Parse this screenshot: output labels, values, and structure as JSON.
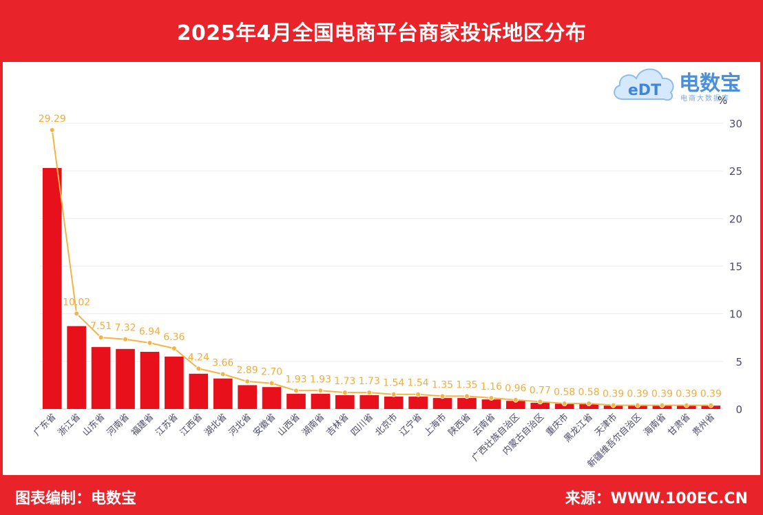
{
  "header": {
    "title": "2025年4月全国电商平台商家投诉地区分布"
  },
  "footer": {
    "left_text": "图表编制：电数宝",
    "right_text": "来源：WWW.100EC.CN"
  },
  "logo": {
    "brand": "电数宝",
    "icon_text": "eDT",
    "tagline": "电商大数据库"
  },
  "colors": {
    "bar": "#e8101a",
    "line": "#f5b342",
    "label": "#f0ad3c",
    "axis_text": "#4a4a6a",
    "header_bg": "#e8232a"
  },
  "chart_data": {
    "type": "bar",
    "title": "2025年4月全国电商平台商家投诉地区分布",
    "ylabel": "%",
    "ylim": [
      0,
      30
    ],
    "yticks": [
      0,
      5,
      10,
      15,
      20,
      25,
      30
    ],
    "grid": true,
    "categories": [
      "广东省",
      "浙江省",
      "山东省",
      "河南省",
      "福建省",
      "江苏省",
      "江西省",
      "湖北省",
      "河北省",
      "安徽省",
      "山西省",
      "湖南省",
      "吉林省",
      "四川省",
      "北京市",
      "辽宁省",
      "上海市",
      "陕西省",
      "云南省",
      "广西壮族自治区",
      "内蒙古自治区",
      "重庆市",
      "黑龙江省",
      "天津市",
      "新疆维吾尔自治区",
      "海南省",
      "甘肃省",
      "贵州省"
    ],
    "series": [
      {
        "type": "bar",
        "values": [
          25.3,
          8.7,
          6.5,
          6.3,
          6.0,
          5.5,
          3.7,
          3.2,
          2.5,
          2.3,
          1.6,
          1.6,
          1.45,
          1.45,
          1.3,
          1.3,
          1.15,
          1.15,
          1.0,
          0.85,
          0.65,
          0.55,
          0.5,
          0.35,
          0.35,
          0.35,
          0.35,
          0.35
        ]
      },
      {
        "type": "line",
        "values": [
          29.29,
          10.02,
          7.51,
          7.32,
          6.94,
          6.36,
          4.24,
          3.66,
          2.89,
          2.7,
          1.93,
          1.93,
          1.73,
          1.73,
          1.54,
          1.54,
          1.35,
          1.35,
          1.16,
          0.96,
          0.77,
          0.58,
          0.58,
          0.39,
          0.39,
          0.39,
          0.39,
          0.39
        ],
        "labels": [
          "29.29",
          "10.02",
          "7.51",
          "7.32",
          "6.94",
          "6.36",
          "4.24",
          "3.66",
          "2.89",
          "2.70",
          "1.93",
          "1.93",
          "1.73",
          "1.73",
          "1.54",
          "1.54",
          "1.35",
          "1.35",
          "1.16",
          "0.96",
          "0.77",
          "0.58",
          "0.58",
          "0.39",
          "0.39",
          "0.39",
          "0.39",
          "0.39"
        ]
      }
    ]
  }
}
